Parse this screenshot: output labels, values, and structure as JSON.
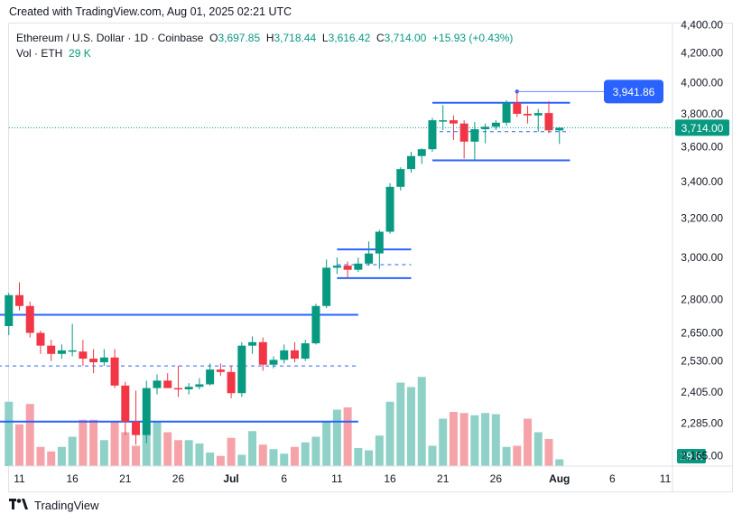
{
  "header": {
    "created_text": "Created with TradingView.com, Aug 01, 2025 02:21 UTC"
  },
  "legend": {
    "symbol": "Ethereum / U.S. Dollar · 1D · Coinbase",
    "o_label": "O",
    "o_value": "3,697.85",
    "h_label": "H",
    "h_value": "3,718.44",
    "l_label": "L",
    "l_value": "3,616.42",
    "c_label": "C",
    "c_value": "3,714.00",
    "change": "+15.93 (+0.43%)",
    "vol_label": "Vol · ETH",
    "vol_value": "29 K"
  },
  "footer": {
    "brand": "TradingView"
  },
  "colors": {
    "up": "#089981",
    "down": "#f23645",
    "up_vol": "#8fd1c6",
    "down_vol": "#f5a3a9",
    "drawing": "#2962ff",
    "text": "#131722",
    "axis_text": "#131722"
  },
  "chart_data": {
    "type": "candlestick",
    "title": "Ethereum / U.S. Dollar · 1D · Coinbase",
    "y_scale": "log",
    "y_ticks": [
      "4,400.00",
      "4,200.00",
      "4,000.00",
      "3,800.00",
      "3,600.00",
      "3,400.00",
      "3,200.00",
      "3,000.00",
      "2,800.00",
      "2,650.00",
      "2,530.00",
      "2,405.00",
      "2,285.00",
      "2,165.00"
    ],
    "y_tick_values": [
      4400,
      4200,
      4000,
      3800,
      3600,
      3400,
      3200,
      3000,
      2800,
      2650,
      2530,
      2405,
      2285,
      2165
    ],
    "x_ticks": [
      "11",
      "16",
      "21",
      "26",
      "Jul",
      "6",
      "11",
      "16",
      "21",
      "26",
      "Aug",
      "6",
      "11"
    ],
    "x_tick_dates": [
      "2025-06-11",
      "2025-06-16",
      "2025-06-21",
      "2025-06-26",
      "2025-07-01",
      "2025-07-06",
      "2025-07-11",
      "2025-07-16",
      "2025-07-21",
      "2025-07-26",
      "2025-08-01",
      "2025-08-06",
      "2025-08-11"
    ],
    "last_price_label": "3,714.00",
    "last_price": 3714.0,
    "volume_label": "29 K",
    "annotation_label": "3,941.86",
    "annotation_value": 3941.86,
    "candles": [
      {
        "d": "2025-06-10",
        "o": 2680,
        "h": 2830,
        "l": 2640,
        "c": 2820
      },
      {
        "d": "2025-06-11",
        "o": 2820,
        "h": 2880,
        "l": 2750,
        "c": 2770
      },
      {
        "d": "2025-06-12",
        "o": 2770,
        "h": 2790,
        "l": 2630,
        "c": 2650
      },
      {
        "d": "2025-06-13",
        "o": 2650,
        "h": 2660,
        "l": 2560,
        "c": 2595
      },
      {
        "d": "2025-06-14",
        "o": 2595,
        "h": 2620,
        "l": 2530,
        "c": 2560
      },
      {
        "d": "2025-06-15",
        "o": 2560,
        "h": 2600,
        "l": 2540,
        "c": 2575
      },
      {
        "d": "2025-06-16",
        "o": 2575,
        "h": 2690,
        "l": 2550,
        "c": 2575
      },
      {
        "d": "2025-06-17",
        "o": 2570,
        "h": 2620,
        "l": 2510,
        "c": 2540
      },
      {
        "d": "2025-06-18",
        "o": 2540,
        "h": 2580,
        "l": 2480,
        "c": 2525
      },
      {
        "d": "2025-06-19",
        "o": 2525,
        "h": 2580,
        "l": 2510,
        "c": 2545
      },
      {
        "d": "2025-06-20",
        "o": 2545,
        "h": 2580,
        "l": 2420,
        "c": 2430
      },
      {
        "d": "2025-06-21",
        "o": 2430,
        "h": 2445,
        "l": 2240,
        "c": 2290
      },
      {
        "d": "2025-06-22",
        "o": 2290,
        "h": 2410,
        "l": 2205,
        "c": 2240
      },
      {
        "d": "2025-06-23",
        "o": 2240,
        "h": 2450,
        "l": 2210,
        "c": 2420
      },
      {
        "d": "2025-06-24",
        "o": 2420,
        "h": 2475,
        "l": 2395,
        "c": 2450
      },
      {
        "d": "2025-06-25",
        "o": 2450,
        "h": 2480,
        "l": 2420,
        "c": 2420
      },
      {
        "d": "2025-06-26",
        "o": 2420,
        "h": 2510,
        "l": 2385,
        "c": 2415
      },
      {
        "d": "2025-06-27",
        "o": 2415,
        "h": 2440,
        "l": 2395,
        "c": 2425
      },
      {
        "d": "2025-06-28",
        "o": 2425,
        "h": 2460,
        "l": 2415,
        "c": 2435
      },
      {
        "d": "2025-06-29",
        "o": 2435,
        "h": 2520,
        "l": 2430,
        "c": 2495
      },
      {
        "d": "2025-06-30",
        "o": 2495,
        "h": 2520,
        "l": 2470,
        "c": 2485
      },
      {
        "d": "2025-07-01",
        "o": 2485,
        "h": 2510,
        "l": 2380,
        "c": 2400
      },
      {
        "d": "2025-07-02",
        "o": 2400,
        "h": 2610,
        "l": 2385,
        "c": 2595
      },
      {
        "d": "2025-07-03",
        "o": 2595,
        "h": 2635,
        "l": 2560,
        "c": 2610
      },
      {
        "d": "2025-07-04",
        "o": 2610,
        "h": 2630,
        "l": 2490,
        "c": 2515
      },
      {
        "d": "2025-07-05",
        "o": 2515,
        "h": 2550,
        "l": 2500,
        "c": 2535
      },
      {
        "d": "2025-07-06",
        "o": 2535,
        "h": 2600,
        "l": 2520,
        "c": 2575
      },
      {
        "d": "2025-07-07",
        "o": 2575,
        "h": 2610,
        "l": 2525,
        "c": 2540
      },
      {
        "d": "2025-07-08",
        "o": 2540,
        "h": 2620,
        "l": 2530,
        "c": 2605
      },
      {
        "d": "2025-07-09",
        "o": 2605,
        "h": 2780,
        "l": 2600,
        "c": 2770
      },
      {
        "d": "2025-07-10",
        "o": 2770,
        "h": 2990,
        "l": 2760,
        "c": 2950
      },
      {
        "d": "2025-07-11",
        "o": 2950,
        "h": 3000,
        "l": 2920,
        "c": 2960
      },
      {
        "d": "2025-07-12",
        "o": 2960,
        "h": 2980,
        "l": 2900,
        "c": 2940
      },
      {
        "d": "2025-07-13",
        "o": 2940,
        "h": 3000,
        "l": 2930,
        "c": 2970
      },
      {
        "d": "2025-07-14",
        "o": 2970,
        "h": 3080,
        "l": 2960,
        "c": 3020
      },
      {
        "d": "2025-07-15",
        "o": 3020,
        "h": 3140,
        "l": 2945,
        "c": 3130
      },
      {
        "d": "2025-07-16",
        "o": 3130,
        "h": 3390,
        "l": 3120,
        "c": 3370
      },
      {
        "d": "2025-07-17",
        "o": 3370,
        "h": 3480,
        "l": 3350,
        "c": 3470
      },
      {
        "d": "2025-07-18",
        "o": 3470,
        "h": 3570,
        "l": 3450,
        "c": 3545
      },
      {
        "d": "2025-07-19",
        "o": 3545,
        "h": 3590,
        "l": 3500,
        "c": 3585
      },
      {
        "d": "2025-07-20",
        "o": 3585,
        "h": 3775,
        "l": 3570,
        "c": 3760
      },
      {
        "d": "2025-07-21",
        "o": 3760,
        "h": 3855,
        "l": 3700,
        "c": 3760
      },
      {
        "d": "2025-07-22",
        "o": 3760,
        "h": 3790,
        "l": 3640,
        "c": 3740
      },
      {
        "d": "2025-07-23",
        "o": 3740,
        "h": 3760,
        "l": 3530,
        "c": 3630
      },
      {
        "d": "2025-07-24",
        "o": 3630,
        "h": 3750,
        "l": 3520,
        "c": 3705
      },
      {
        "d": "2025-07-25",
        "o": 3705,
        "h": 3740,
        "l": 3620,
        "c": 3720
      },
      {
        "d": "2025-07-26",
        "o": 3720,
        "h": 3760,
        "l": 3700,
        "c": 3745
      },
      {
        "d": "2025-07-27",
        "o": 3745,
        "h": 3885,
        "l": 3725,
        "c": 3870
      },
      {
        "d": "2025-07-28",
        "o": 3870,
        "h": 3942,
        "l": 3780,
        "c": 3800
      },
      {
        "d": "2025-07-29",
        "o": 3800,
        "h": 3850,
        "l": 3740,
        "c": 3790
      },
      {
        "d": "2025-07-30",
        "o": 3790,
        "h": 3830,
        "l": 3690,
        "c": 3805
      },
      {
        "d": "2025-07-31",
        "o": 3805,
        "h": 3880,
        "l": 3680,
        "c": 3698
      },
      {
        "d": "2025-08-01",
        "o": 3697.85,
        "h": 3718.44,
        "l": 3616.42,
        "c": 3714.0
      }
    ],
    "volume_relative": [
      0.57,
      0.37,
      0.55,
      0.17,
      0.13,
      0.17,
      0.26,
      0.41,
      0.41,
      0.23,
      0.4,
      0.3,
      0.18,
      0.37,
      0.39,
      0.3,
      0.23,
      0.23,
      0.2,
      0.12,
      0.09,
      0.25,
      0.1,
      0.31,
      0.19,
      0.15,
      0.11,
      0.17,
      0.21,
      0.26,
      0.4,
      0.5,
      0.52,
      0.16,
      0.14,
      0.27,
      0.57,
      0.74,
      0.7,
      0.79,
      0.18,
      0.42,
      0.48,
      0.47,
      0.45,
      0.47,
      0.46,
      0.17,
      0.18,
      0.42,
      0.3,
      0.24,
      0.06
    ],
    "drawings": {
      "ranges": [
        {
          "from": "2025-06-09",
          "to": "2025-07-13",
          "top": 2730,
          "bottom": 2290,
          "mid": 2510
        },
        {
          "from": "2025-07-11",
          "to": "2025-07-18",
          "top": 3040,
          "bottom": 2900,
          "mid": 2965
        },
        {
          "from": "2025-07-20",
          "to": "2025-08-02",
          "top": 3870,
          "bottom": 3520,
          "mid": 3690
        }
      ]
    }
  }
}
